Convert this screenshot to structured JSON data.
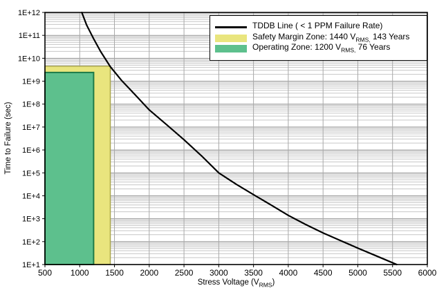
{
  "chart_data": {
    "type": "line",
    "title": "",
    "xlabel": {
      "pre": "Stress Voltage (V",
      "sub": "RMS",
      "post": ")"
    },
    "ylabel": "Time to Failure (sec)",
    "x_axis": {
      "min": 500,
      "max": 6000,
      "tick_step": 500,
      "tick_labels": [
        "500",
        "1000",
        "1500",
        "2000",
        "2500",
        "3000",
        "3500",
        "4000",
        "4500",
        "5000",
        "5500",
        "6000"
      ]
    },
    "y_axis": {
      "scale": "log",
      "min": 10,
      "max": 1000000000000.0,
      "tick_labels": [
        "1E+1",
        "1E+2",
        "1E+3",
        "1E+4",
        "1E+5",
        "1E+6",
        "1E+7",
        "1E+8",
        "1E+9",
        "1E+10",
        "1E+11",
        "1E+12"
      ]
    },
    "grid": {
      "visible": true,
      "minor_color": "#c6c6c6",
      "major_color": "#989898",
      "vertical_color": "#a8a8a8"
    },
    "tddb_line": {
      "name": "TDDB Line ( < 1 PPM Failure Rate)",
      "color": "#000000",
      "points_v_sec": [
        [
          1030,
          1000000000000.0
        ],
        [
          1100,
          280000000000.0
        ],
        [
          1200,
          71000000000.0
        ],
        [
          1300,
          20000000000.0
        ],
        [
          1440,
          4300000000.0
        ],
        [
          1600,
          1100000000.0
        ],
        [
          1800,
          250000000.0
        ],
        [
          2000,
          56000000.0
        ],
        [
          2250,
          12600000.0
        ],
        [
          2500,
          2800000.0
        ],
        [
          2750,
          560000.0
        ],
        [
          3000,
          100000.0
        ],
        [
          3250,
          32000.0
        ],
        [
          3500,
          11200.0
        ],
        [
          3750,
          4000.0
        ],
        [
          4000,
          1400.0
        ],
        [
          4250,
          560
        ],
        [
          4500,
          240
        ],
        [
          4750,
          112
        ],
        [
          5000,
          52
        ],
        [
          5250,
          25
        ],
        [
          5400,
          16
        ],
        [
          5560,
          10
        ]
      ]
    },
    "zones": [
      {
        "name": "Safety Margin Zone",
        "v_min": 500,
        "v_max": 1440,
        "t_min_sec": 10,
        "t_max_sec": 4500000000.0,
        "years": 143,
        "fill": "#e9e57e",
        "border": "#aaa64c"
      },
      {
        "name": "Operating Zone",
        "v_min": 500,
        "v_max": 1200,
        "t_min_sec": 10,
        "t_max_sec": 2400000000.0,
        "years": 76,
        "fill": "#5dc08d",
        "border": "#1e7a47"
      }
    ],
    "legend": {
      "position": "top-right",
      "rows": [
        {
          "swatch": "line",
          "color": "#000000",
          "pre": "TDDB Line ( < 1 PPM Failure Rate)",
          "sub": "",
          "post": ""
        },
        {
          "swatch": "fill",
          "color": "#e9e57e",
          "pre": "Safety Margin Zone: 1440 V",
          "sub": "RMS,",
          "post": " 143 Years"
        },
        {
          "swatch": "fill",
          "color": "#5dc08d",
          "pre": "Operating Zone: 1200 V",
          "sub": "RMS,",
          "post": " 76 Years"
        }
      ]
    }
  }
}
